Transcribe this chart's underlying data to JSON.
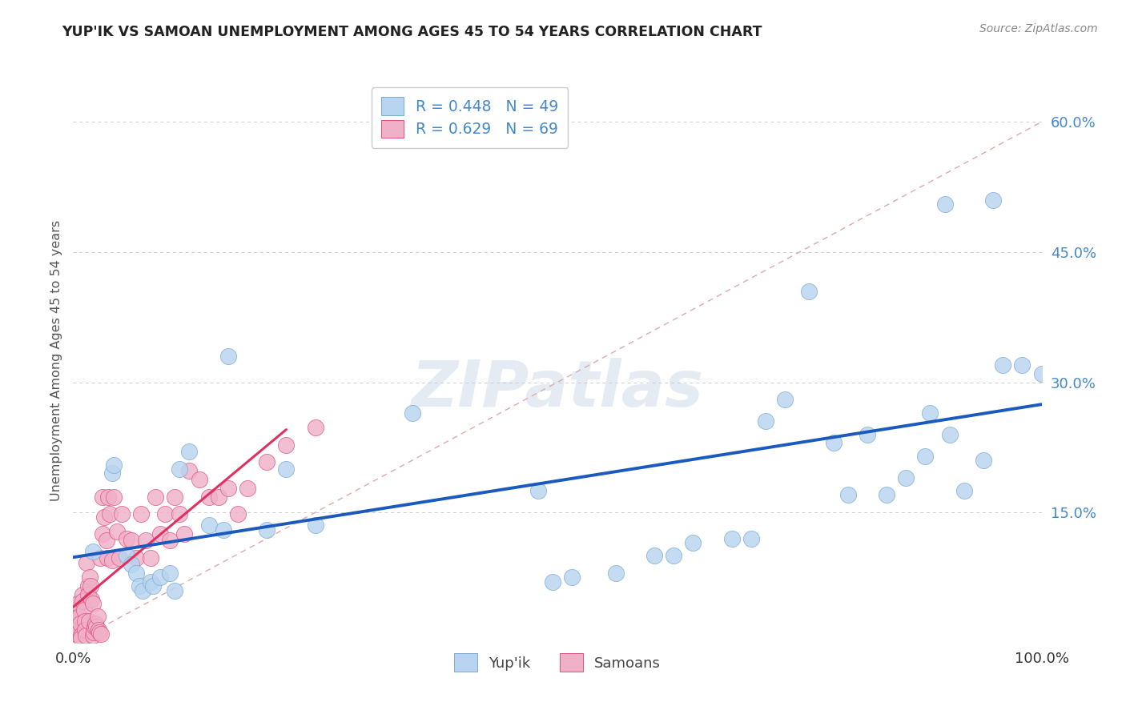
{
  "title": "YUP'IK VS SAMOAN UNEMPLOYMENT AMONG AGES 45 TO 54 YEARS CORRELATION CHART",
  "source": "Source: ZipAtlas.com",
  "ylabel": "Unemployment Among Ages 45 to 54 years",
  "xlim": [
    0.0,
    1.0
  ],
  "ylim": [
    0.0,
    0.65
  ],
  "ytick_vals": [
    0.0,
    0.15,
    0.3,
    0.45,
    0.6
  ],
  "ytick_labels": [
    "",
    "15.0%",
    "30.0%",
    "45.0%",
    "60.0%"
  ],
  "xtick_vals": [
    0.0,
    1.0
  ],
  "xtick_labels": [
    "0.0%",
    "100.0%"
  ],
  "watermark_text": "ZIPatlas",
  "legend_r1": "R = 0.448",
  "legend_n1": "N = 49",
  "legend_r2": "R = 0.629",
  "legend_n2": "N = 69",
  "color_yupik_fill": "#b8d4f0",
  "color_yupik_edge": "#7aaad0",
  "color_samoan_fill": "#f0b0c8",
  "color_samoan_edge": "#e05080",
  "color_line_yupik": "#1a5abf",
  "color_line_samoan": "#e03060",
  "color_diagonal": "#cccccc",
  "color_grid": "#cccccc",
  "bg_color": "#ffffff",
  "title_color": "#222222",
  "source_color": "#888888",
  "legend_value_color": "#4488cc",
  "legend_label_color": "#444444",
  "yupik_x": [
    0.02,
    0.04,
    0.042,
    0.055,
    0.06,
    0.065,
    0.068,
    0.072,
    0.08,
    0.082,
    0.09,
    0.1,
    0.105,
    0.11,
    0.12,
    0.14,
    0.155,
    0.16,
    0.2,
    0.22,
    0.25,
    0.35,
    0.48,
    0.495,
    0.515,
    0.56,
    0.64,
    0.68,
    0.7,
    0.715,
    0.735,
    0.76,
    0.785,
    0.82,
    0.84,
    0.86,
    0.88,
    0.885,
    0.9,
    0.905,
    0.92,
    0.94,
    0.95,
    0.96,
    0.98,
    1.0,
    0.6,
    0.62,
    0.8
  ],
  "yupik_y": [
    0.105,
    0.195,
    0.205,
    0.1,
    0.09,
    0.08,
    0.065,
    0.06,
    0.07,
    0.065,
    0.075,
    0.08,
    0.06,
    0.2,
    0.22,
    0.135,
    0.13,
    0.33,
    0.13,
    0.2,
    0.135,
    0.265,
    0.175,
    0.07,
    0.075,
    0.08,
    0.115,
    0.12,
    0.12,
    0.255,
    0.28,
    0.405,
    0.23,
    0.24,
    0.17,
    0.19,
    0.215,
    0.265,
    0.505,
    0.24,
    0.175,
    0.21,
    0.51,
    0.32,
    0.32,
    0.31,
    0.1,
    0.1,
    0.17
  ],
  "samoan_x": [
    0.0,
    0.0,
    0.002,
    0.003,
    0.004,
    0.005,
    0.006,
    0.007,
    0.008,
    0.008,
    0.01,
    0.01,
    0.011,
    0.012,
    0.012,
    0.013,
    0.014,
    0.015,
    0.015,
    0.016,
    0.017,
    0.018,
    0.019,
    0.02,
    0.02,
    0.021,
    0.022,
    0.023,
    0.024,
    0.025,
    0.026,
    0.027,
    0.028,
    0.029,
    0.03,
    0.03,
    0.032,
    0.034,
    0.035,
    0.036,
    0.038,
    0.04,
    0.042,
    0.045,
    0.048,
    0.05,
    0.055,
    0.06,
    0.065,
    0.07,
    0.075,
    0.08,
    0.085,
    0.09,
    0.095,
    0.1,
    0.105,
    0.11,
    0.115,
    0.12,
    0.13,
    0.14,
    0.15,
    0.16,
    0.17,
    0.18,
    0.2,
    0.22,
    0.25
  ],
  "samoan_y": [
    0.038,
    0.018,
    0.028,
    0.015,
    0.01,
    0.045,
    0.03,
    0.022,
    0.008,
    0.005,
    0.055,
    0.048,
    0.038,
    0.025,
    0.015,
    0.008,
    0.092,
    0.065,
    0.055,
    0.025,
    0.075,
    0.065,
    0.05,
    0.045,
    0.008,
    0.012,
    0.018,
    0.022,
    0.018,
    0.03,
    0.015,
    0.012,
    0.098,
    0.01,
    0.168,
    0.125,
    0.145,
    0.118,
    0.098,
    0.168,
    0.148,
    0.095,
    0.168,
    0.128,
    0.098,
    0.148,
    0.12,
    0.118,
    0.098,
    0.148,
    0.118,
    0.098,
    0.168,
    0.125,
    0.148,
    0.118,
    0.168,
    0.148,
    0.125,
    0.198,
    0.188,
    0.168,
    0.168,
    0.178,
    0.148,
    0.178,
    0.208,
    0.228,
    0.248
  ]
}
